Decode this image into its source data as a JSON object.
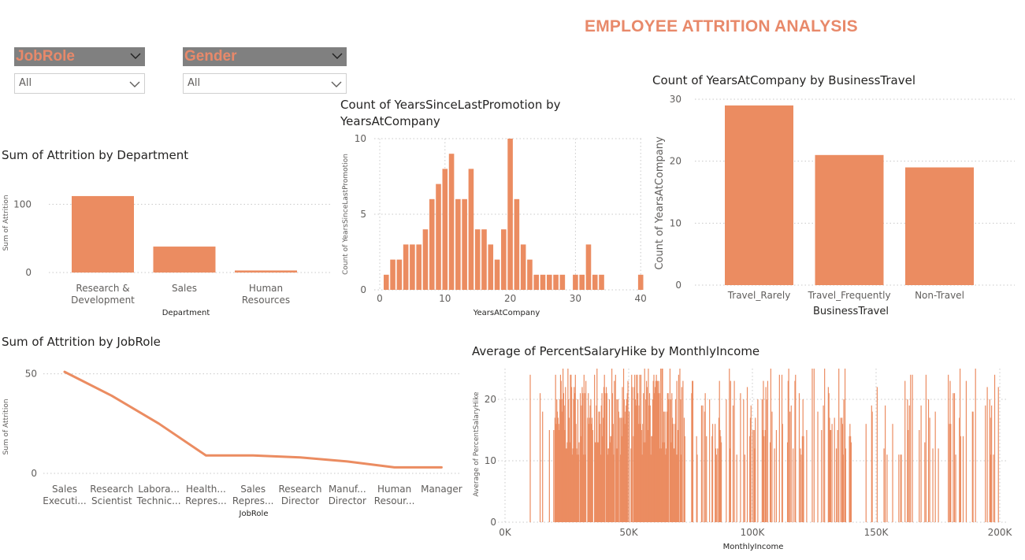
{
  "page": {
    "title": "EMPLOYEE ATTRITION ANALYSIS"
  },
  "colors": {
    "accent": "#e8896a",
    "bar": "#eb8c61",
    "slicer_header": "#808080",
    "axis_text": "#605e5c",
    "grid": "#c8c8c8"
  },
  "slicers": {
    "jobrole": {
      "label": "JobRole",
      "value": "All",
      "icon": "chevron-down-icon"
    },
    "gender": {
      "label": "Gender",
      "value": "All",
      "icon": "chevron-down-icon"
    }
  },
  "chart_data": [
    {
      "id": "attrition_by_department",
      "type": "bar",
      "title": "Sum of Attrition by Department",
      "xlabel": "Department",
      "ylabel": "Sum of Attrition",
      "categories": [
        [
          "Research &",
          "Development"
        ],
        [
          "Sales"
        ],
        [
          "Human",
          "Resources"
        ]
      ],
      "values": [
        112,
        38,
        3
      ],
      "ylim": [
        0,
        150
      ],
      "yticks": [
        "0",
        "100"
      ],
      "grid": true
    },
    {
      "id": "promotion_by_yearsatcompany",
      "type": "bar",
      "title": [
        "Count of YearsSinceLastPromotion by",
        "YearsAtCompany"
      ],
      "xlabel": "YearsAtCompany",
      "ylabel": "Count of YearsSinceLastPromotion",
      "x": [
        1,
        2,
        3,
        4,
        5,
        6,
        7,
        8,
        9,
        10,
        11,
        12,
        13,
        14,
        15,
        16,
        17,
        18,
        19,
        20,
        21,
        22,
        23,
        24,
        25,
        26,
        27,
        28,
        30,
        31,
        32,
        33,
        34,
        40
      ],
      "values": [
        1,
        2,
        2,
        3,
        3,
        3,
        4,
        6,
        7,
        8,
        9,
        6,
        6,
        8,
        4,
        4,
        3,
        2,
        4,
        10,
        6,
        3,
        2,
        1,
        1,
        1,
        1,
        1,
        1,
        1,
        3,
        1,
        1,
        1
      ],
      "xlim": [
        0,
        40
      ],
      "xticks": [
        "0",
        "10",
        "20",
        "30",
        "40"
      ],
      "ylim": [
        0,
        10
      ],
      "yticks": [
        "0",
        "5",
        "10"
      ],
      "grid": true
    },
    {
      "id": "yearsatcompany_by_businesstravel",
      "type": "bar",
      "title": "Count of YearsAtCompany by BusinessTravel",
      "xlabel": "BusinessTravel",
      "ylabel": "Count of YearsAtCompany",
      "categories": [
        "Travel_Rarely",
        "Travel_Frequently",
        "Non-Travel"
      ],
      "values": [
        29,
        21,
        19
      ],
      "ylim": [
        0,
        30
      ],
      "yticks": [
        "0",
        "10",
        "20",
        "30"
      ],
      "grid": true
    },
    {
      "id": "attrition_by_jobrole",
      "type": "line",
      "title": "Sum of Attrition by JobRole",
      "xlabel": "JobRole",
      "ylabel": "Sum of Attrition",
      "categories": [
        [
          "Sales",
          "Executi..."
        ],
        [
          "Research",
          "Scientist"
        ],
        [
          "Labora...",
          "Technic..."
        ],
        [
          "Health...",
          "Repres..."
        ],
        [
          "Sales",
          "Repres..."
        ],
        [
          "Research",
          "Director"
        ],
        [
          "Manuf...",
          "Director"
        ],
        [
          "Human",
          "Resour..."
        ],
        [
          "Manager"
        ]
      ],
      "values": [
        51,
        39,
        25,
        9,
        9,
        8,
        6,
        3,
        3
      ],
      "ylim": [
        0,
        55
      ],
      "yticks": [
        "0",
        "50"
      ],
      "grid": true
    },
    {
      "id": "salaryhike_by_monthlyincome",
      "type": "bar",
      "title": "Average of PercentSalaryHike by MonthlyIncome",
      "xlabel": "MonthlyIncome",
      "ylabel": "Average of PercentSalaryHike",
      "note": "dense column chart of roughly 1,350 income values between about 10K and 200K, heights 11 to 25",
      "x_range": [
        10000,
        200000
      ],
      "y_range": [
        11,
        25
      ],
      "xlim": [
        0,
        200000
      ],
      "xticks": [
        "0K",
        "50K",
        "100K",
        "150K",
        "200K"
      ],
      "ylim": [
        0,
        25
      ],
      "yticks": [
        "0",
        "10",
        "20"
      ],
      "grid": true
    }
  ]
}
